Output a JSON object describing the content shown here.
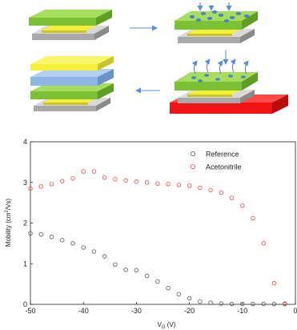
{
  "schematic": {
    "colors": {
      "substrate_gray": "#c8c8c8",
      "substrate_dark": "#8a8a8a",
      "semiconductor_green": "#8ed03f",
      "electrode_yellow": "#f4ef3a",
      "dielectric_blue": "#8fb6e6",
      "heater_red": "#f01414",
      "molecule_blue": "#4a7fd4",
      "arrow": "#5b8ed6"
    }
  },
  "chart_data": {
    "type": "scatter",
    "xlabel": "V",
    "xlabel_sub": "G",
    "xlabel_unit": "(V)",
    "ylabel": "Mobility (cm",
    "ylabel_sup": "2",
    "ylabel_unit": "/Vs)",
    "xlim": [
      -50,
      0
    ],
    "ylim": [
      0,
      4
    ],
    "xticks": [
      -50,
      -40,
      -30,
      -20,
      -10,
      0
    ],
    "yticks": [
      0,
      1,
      2,
      3,
      4
    ],
    "legend_position": "top-right",
    "series": [
      {
        "name": "Reference",
        "color": "#555555",
        "x": [
          -50,
          -48,
          -46,
          -44,
          -42,
          -40,
          -38,
          -36,
          -34,
          -32,
          -30,
          -28,
          -26,
          -24,
          -22,
          -20,
          -18,
          -16,
          -14,
          -12,
          -10,
          -8,
          -6,
          -4,
          -2
        ],
        "y": [
          1.75,
          1.72,
          1.66,
          1.58,
          1.5,
          1.4,
          1.3,
          1.18,
          0.98,
          0.85,
          0.84,
          0.7,
          0.56,
          0.4,
          0.25,
          0.15,
          0.07,
          0.04,
          0.02,
          0.01,
          0.01,
          0.01,
          0.01,
          0.01,
          0.01
        ]
      },
      {
        "name": "Acetonitrile",
        "color": "#e04848",
        "x": [
          -50,
          -48,
          -46,
          -44,
          -42,
          -40,
          -38,
          -36,
          -34,
          -32,
          -30,
          -28,
          -26,
          -24,
          -22,
          -20,
          -18,
          -16,
          -14,
          -12,
          -10,
          -8,
          -6,
          -4,
          -2
        ],
        "y": [
          2.85,
          2.9,
          2.96,
          3.03,
          3.1,
          3.27,
          3.27,
          3.12,
          3.08,
          3.05,
          3.02,
          3.0,
          2.97,
          2.96,
          2.94,
          2.92,
          2.87,
          2.81,
          2.75,
          2.62,
          2.43,
          2.12,
          1.5,
          0.52,
          0.02
        ]
      }
    ]
  }
}
